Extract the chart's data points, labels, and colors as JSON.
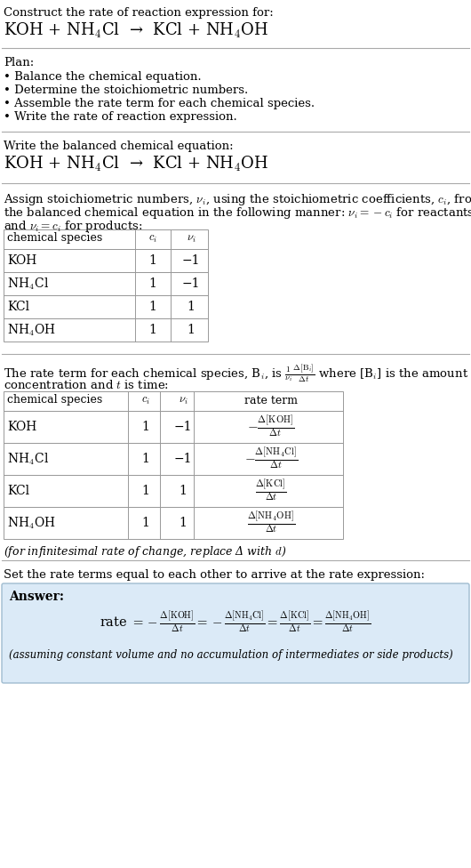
{
  "bg_color": "#ffffff",
  "text_color": "#000000",
  "title_line1": "Construct the rate of reaction expression for:",
  "reaction_equation": "KOH + NH$_4$Cl  →  KCl + NH$_4$OH",
  "plan_header": "Plan:",
  "plan_items": [
    "• Balance the chemical equation.",
    "• Determine the stoichiometric numbers.",
    "• Assemble the rate term for each chemical species.",
    "• Write the rate of reaction expression."
  ],
  "balanced_header": "Write the balanced chemical equation:",
  "balanced_eq": "KOH + NH$_4$Cl  →  KCl + NH$_4$OH",
  "stoich_header_line1": "Assign stoichiometric numbers, $\\nu_i$, using the stoichiometric coefficients, $c_i$, from",
  "stoich_header_line2": "the balanced chemical equation in the following manner: $\\nu_i = -c_i$ for reactants",
  "stoich_header_line3": "and $\\nu_i = c_i$ for products:",
  "table1_col0_header": "chemical species",
  "table1_col1_header": "$c_i$",
  "table1_col2_header": "$\\nu_i$",
  "table1_rows": [
    [
      "KOH",
      "1",
      "−1"
    ],
    [
      "NH$_4$Cl",
      "1",
      "−1"
    ],
    [
      "KCl",
      "1",
      "1"
    ],
    [
      "NH$_4$OH",
      "1",
      "1"
    ]
  ],
  "rate_header_line1": "The rate term for each chemical species, B$_i$, is $\\frac{1}{\\nu_i}\\frac{\\Delta[\\mathrm{B}_i]}{\\Delta t}$ where [B$_i$] is the amount",
  "rate_header_line2": "concentration and $t$ is time:",
  "table2_col0_header": "chemical species",
  "table2_col1_header": "$c_i$",
  "table2_col2_header": "$\\nu_i$",
  "table2_col3_header": "rate term",
  "table2_rows": [
    [
      "KOH",
      "1",
      "−1",
      "$-\\frac{\\Delta[\\mathrm{KOH}]}{\\Delta t}$"
    ],
    [
      "NH$_4$Cl",
      "1",
      "−1",
      "$-\\frac{\\Delta[\\mathrm{NH_4Cl}]}{\\Delta t}$"
    ],
    [
      "KCl",
      "1",
      "1",
      "$\\frac{\\Delta[\\mathrm{KCl}]}{\\Delta t}$"
    ],
    [
      "NH$_4$OH",
      "1",
      "1",
      "$\\frac{\\Delta[\\mathrm{NH_4OH}]}{\\Delta t}$"
    ]
  ],
  "infinitesimal_note": "(for infinitesimal rate of change, replace Δ with $d$)",
  "set_rate_header": "Set the rate terms equal to each other to arrive at the rate expression:",
  "answer_label": "Answer:",
  "answer_box_color": "#dbeaf7",
  "answer_box_border": "#a0bcd0",
  "rate_expr_left": "rate $= -\\frac{\\Delta[\\mathrm{KOH}]}{\\Delta t} = -\\frac{\\Delta[\\mathrm{NH_4Cl}]}{\\Delta t} = \\frac{\\Delta[\\mathrm{KCl}]}{\\Delta t} = \\frac{\\Delta[\\mathrm{NH_4OH}]}{\\Delta t}$",
  "assuming_note": "(assuming constant volume and no accumulation of intermediates or side products)"
}
